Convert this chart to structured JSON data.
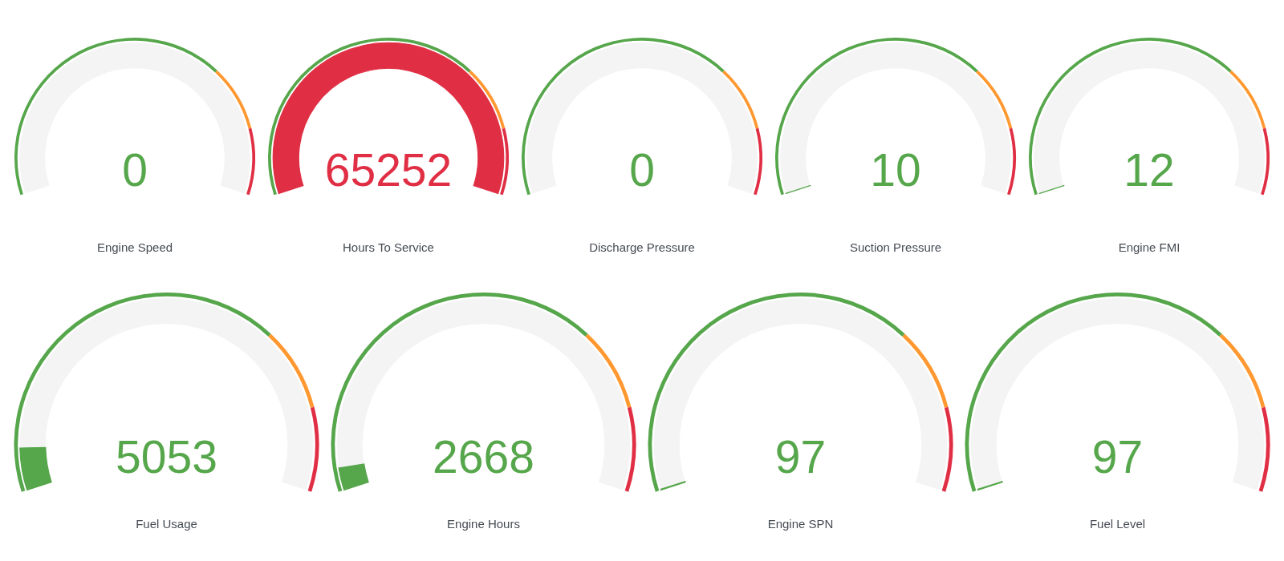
{
  "chart_data": {
    "type": "other",
    "categories": [
      "Engine Speed",
      "Hours To Service",
      "Discharge Pressure",
      "Suction Pressure",
      "Engine FMI",
      "Fuel Usage",
      "Engine Hours",
      "Engine SPN",
      "Fuel Level"
    ],
    "values": [
      0,
      65252,
      0,
      10,
      12,
      5053,
      2668,
      97,
      97
    ],
    "colors": [
      "#56a64b",
      "#e02f44",
      "#56a64b",
      "#56a64b",
      "#56a64b",
      "#56a64b",
      "#56a64b",
      "#56a64b",
      "#56a64b"
    ],
    "data_labels": true
  }
}
